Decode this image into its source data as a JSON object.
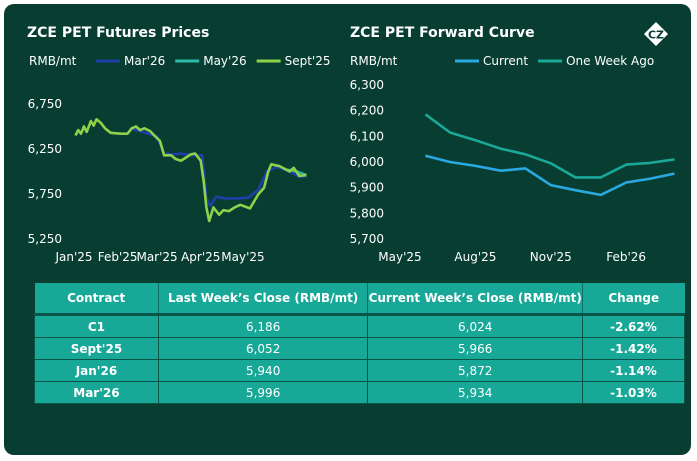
{
  "logo": {
    "text": "CZ",
    "icon": "cz-diamond-logo"
  },
  "chart_data": [
    {
      "type": "line",
      "title": "ZCE PET Futures Prices",
      "ylabel": "RMB/mt",
      "ylim": [
        5250,
        6750
      ],
      "yticks": [
        "5,250",
        "5,750",
        "6,250",
        "6,750"
      ],
      "ytick_values": [
        5250,
        5750,
        6250,
        6750
      ],
      "xlim": [
        "2025-01-01",
        "2025-06-19"
      ],
      "xticks": [
        "Jan'25",
        "Feb'25",
        "Mar'25",
        "Apr'25",
        "May'25"
      ],
      "xtick_values": [
        "2025-01-01",
        "2025-02-01",
        "2025-03-01",
        "2025-04-01",
        "2025-05-01"
      ],
      "legend": "top",
      "grid": false,
      "series": [
        {
          "name": "Mar'26",
          "color": "#1f3fa8",
          "points": [
            [
              "2025-02-10",
              6480
            ],
            [
              "2025-03-01",
              6390
            ],
            [
              "2025-03-06",
              6200
            ],
            [
              "2025-03-12",
              6190
            ],
            [
              "2025-03-18",
              6200
            ],
            [
              "2025-03-26",
              6180
            ],
            [
              "2025-04-02",
              6180
            ],
            [
              "2025-04-05",
              5700
            ],
            [
              "2025-04-08",
              5620
            ],
            [
              "2025-04-12",
              5720
            ],
            [
              "2025-04-18",
              5700
            ],
            [
              "2025-04-26",
              5700
            ],
            [
              "2025-05-05",
              5710
            ],
            [
              "2025-05-12",
              5800
            ],
            [
              "2025-05-18",
              6000
            ],
            [
              "2025-05-25",
              6050
            ],
            [
              "2025-06-02",
              6010
            ],
            [
              "2025-06-10",
              5940
            ],
            [
              "2025-06-15",
              5950
            ]
          ]
        },
        {
          "name": "May'26",
          "color": "#2fb8a6",
          "points": [
            [
              "2025-06-01",
              6020
            ],
            [
              "2025-06-08",
              6000
            ],
            [
              "2025-06-15",
              5960
            ]
          ]
        },
        {
          "name": "Sept'25",
          "color": "#8fd14a",
          "points": [
            [
              "2025-01-02",
              6400
            ],
            [
              "2025-01-04",
              6460
            ],
            [
              "2025-01-06",
              6420
            ],
            [
              "2025-01-08",
              6500
            ],
            [
              "2025-01-10",
              6440
            ],
            [
              "2025-01-13",
              6560
            ],
            [
              "2025-01-15",
              6510
            ],
            [
              "2025-01-17",
              6580
            ],
            [
              "2025-01-20",
              6540
            ],
            [
              "2025-01-23",
              6480
            ],
            [
              "2025-01-27",
              6430
            ],
            [
              "2025-02-03",
              6420
            ],
            [
              "2025-02-08",
              6420
            ],
            [
              "2025-02-11",
              6480
            ],
            [
              "2025-02-14",
              6500
            ],
            [
              "2025-02-17",
              6460
            ],
            [
              "2025-02-20",
              6480
            ],
            [
              "2025-02-24",
              6450
            ],
            [
              "2025-02-27",
              6400
            ],
            [
              "2025-03-03",
              6340
            ],
            [
              "2025-03-06",
              6180
            ],
            [
              "2025-03-11",
              6180
            ],
            [
              "2025-03-14",
              6140
            ],
            [
              "2025-03-18",
              6120
            ],
            [
              "2025-03-21",
              6150
            ],
            [
              "2025-03-25",
              6190
            ],
            [
              "2025-03-28",
              6200
            ],
            [
              "2025-04-01",
              6120
            ],
            [
              "2025-04-03",
              5900
            ],
            [
              "2025-04-05",
              5600
            ],
            [
              "2025-04-07",
              5450
            ],
            [
              "2025-04-10",
              5600
            ],
            [
              "2025-04-14",
              5520
            ],
            [
              "2025-04-17",
              5570
            ],
            [
              "2025-04-21",
              5560
            ],
            [
              "2025-04-25",
              5600
            ],
            [
              "2025-04-29",
              5630
            ],
            [
              "2025-05-06",
              5590
            ],
            [
              "2025-05-12",
              5750
            ],
            [
              "2025-05-16",
              5820
            ],
            [
              "2025-05-19",
              6000
            ],
            [
              "2025-05-21",
              6080
            ],
            [
              "2025-05-27",
              6060
            ],
            [
              "2025-06-03",
              6000
            ],
            [
              "2025-06-06",
              6040
            ],
            [
              "2025-06-10",
              5950
            ],
            [
              "2025-06-15",
              5960
            ]
          ]
        }
      ]
    },
    {
      "type": "line",
      "title": "ZCE PET Forward Curve",
      "ylabel": "RMB/mt",
      "ylim": [
        5700,
        6300
      ],
      "yticks": [
        "5,700",
        "5,800",
        "5,900",
        "6,000",
        "6,100",
        "6,200",
        "6,300"
      ],
      "ytick_values": [
        5700,
        5800,
        5900,
        6000,
        6100,
        6200,
        6300
      ],
      "xlim": [
        "2025-05-01",
        "2026-04-15"
      ],
      "xticks": [
        "May'25",
        "Aug'25",
        "Nov'25",
        "Feb'26"
      ],
      "xtick_values": [
        "2025-05-01",
        "2025-08-01",
        "2025-11-01",
        "2026-02-01"
      ],
      "legend": "top",
      "grid": false,
      "series": [
        {
          "name": "Current",
          "color": "#2aa8e0",
          "points": [
            [
              "2025-06-01",
              6024
            ],
            [
              "2025-07-01",
              6000
            ],
            [
              "2025-08-01",
              5985
            ],
            [
              "2025-09-01",
              5966
            ],
            [
              "2025-10-01",
              5975
            ],
            [
              "2025-11-01",
              5910
            ],
            [
              "2025-12-01",
              5890
            ],
            [
              "2026-01-01",
              5872
            ],
            [
              "2026-02-01",
              5920
            ],
            [
              "2026-03-01",
              5934
            ],
            [
              "2026-04-01",
              5955
            ]
          ]
        },
        {
          "name": "One Week Ago",
          "color": "#1aa898",
          "points": [
            [
              "2025-06-01",
              6186
            ],
            [
              "2025-07-01",
              6115
            ],
            [
              "2025-08-01",
              6085
            ],
            [
              "2025-09-01",
              6052
            ],
            [
              "2025-10-01",
              6030
            ],
            [
              "2025-11-01",
              5995
            ],
            [
              "2025-12-01",
              5940
            ],
            [
              "2026-01-01",
              5940
            ],
            [
              "2026-02-01",
              5990
            ],
            [
              "2026-03-01",
              5996
            ],
            [
              "2026-04-01",
              6010
            ]
          ]
        }
      ]
    }
  ],
  "table": {
    "headers": [
      "Contract",
      "Last Week’s Close (RMB/mt)",
      "Current Week’s Close (RMB/mt)",
      "Change"
    ],
    "rows": [
      [
        "C1",
        "6,186",
        "6,024",
        "-2.62%"
      ],
      [
        "Sept'25",
        "6,052",
        "5,966",
        "-1.42%"
      ],
      [
        "Jan'26",
        "5,940",
        "5,872",
        "-1.14%"
      ],
      [
        "Mar'26",
        "5,996",
        "5,934",
        "-1.03%"
      ]
    ]
  }
}
